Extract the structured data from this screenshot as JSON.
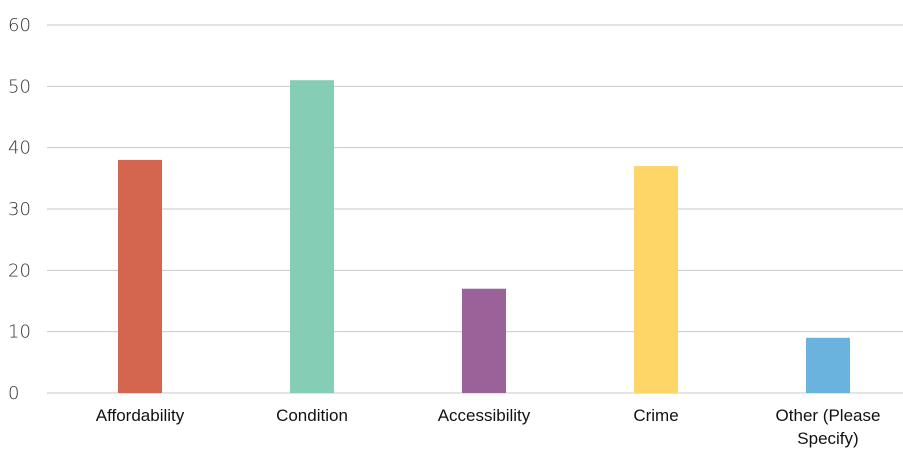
{
  "chart_data": {
    "type": "bar",
    "title": "",
    "xlabel": "",
    "ylabel": "",
    "categories": [
      "Affordability",
      "Condition",
      "Accessibility",
      "Crime",
      "Other (Please Specify)"
    ],
    "category_lines": [
      [
        "Affordability"
      ],
      [
        "Condition"
      ],
      [
        "Accessibility"
      ],
      [
        "Crime"
      ],
      [
        "Other (Please",
        "Specify)"
      ]
    ],
    "values": [
      38,
      51,
      17,
      37,
      9
    ],
    "colors": [
      "#d4664f",
      "#86cdb6",
      "#9b6299",
      "#fed567",
      "#6ab3df"
    ],
    "ylim": [
      0,
      60
    ],
    "yticks": [
      0,
      10,
      20,
      30,
      40,
      50,
      60
    ],
    "grid": true,
    "legend": "none"
  }
}
